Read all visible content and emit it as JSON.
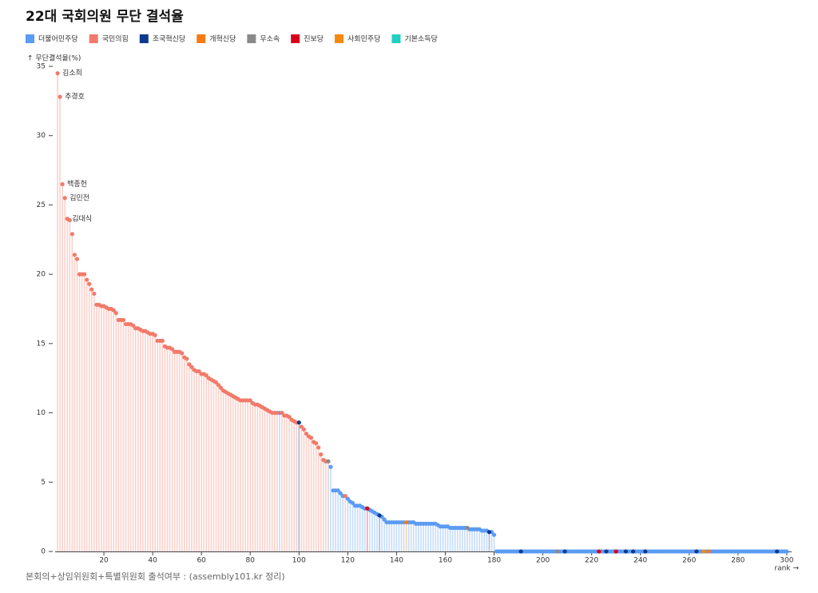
{
  "chart_data": {
    "type": "lollipop",
    "title": "22대 국회의원 무단 결석율",
    "y_label": "↑ 무단결석율(%)",
    "x_label": "rank →",
    "footnote": "본회의+상임위원회+특별위원회 출석여부 : (assembly101.kr 정리)",
    "xlim": [
      0,
      302
    ],
    "ylim": [
      0,
      35
    ],
    "xticks": [
      20,
      40,
      60,
      80,
      100,
      120,
      140,
      160,
      180,
      200,
      220,
      240,
      260,
      280,
      300
    ],
    "yticks": [
      0,
      5,
      10,
      15,
      20,
      25,
      30,
      35
    ],
    "annotations": [
      {
        "text": "김소희",
        "x": 1,
        "y": 34.5
      },
      {
        "text": "추경호",
        "x": 2,
        "y": 32.8
      },
      {
        "text": "백종헌",
        "x": 3,
        "y": 26.5
      },
      {
        "text": "김민전",
        "x": 4,
        "y": 25.5
      },
      {
        "text": "김대식",
        "x": 5,
        "y": 24.0
      }
    ],
    "series": [
      {
        "name": "더불어민주당",
        "color": "#5a9bf3",
        "x": [
          92,
          113,
          114,
          115,
          116,
          117,
          118,
          120,
          121,
          122,
          123,
          124,
          125,
          126,
          127,
          129,
          130,
          131,
          132,
          134,
          135,
          136,
          137,
          138,
          139,
          140,
          141,
          142,
          143,
          145,
          146,
          147,
          148,
          149,
          150,
          151,
          152,
          153,
          154,
          155,
          156,
          157,
          158,
          159,
          160,
          161,
          162,
          163,
          164,
          165,
          166,
          167,
          168,
          170,
          171,
          172,
          173,
          174,
          175,
          176,
          177,
          179,
          180,
          181,
          182,
          183,
          184,
          185,
          186,
          187,
          188,
          189,
          190,
          192,
          193,
          194,
          195,
          196,
          197,
          198,
          199,
          200,
          201,
          202,
          203,
          204,
          205,
          207,
          208,
          210,
          211,
          212,
          213,
          214,
          215,
          216,
          217,
          218,
          219,
          220,
          221,
          222,
          224,
          225,
          227,
          228,
          229,
          231,
          232,
          233,
          235,
          236,
          238,
          239,
          240,
          241,
          243,
          244,
          245,
          246,
          247,
          248,
          249,
          250,
          251,
          252,
          253,
          254,
          255,
          256,
          257,
          258,
          259,
          260,
          261,
          262,
          264,
          265,
          267,
          269,
          270,
          271,
          272,
          273,
          274,
          275,
          276,
          277,
          278,
          279,
          280,
          281,
          282,
          283,
          284,
          285,
          286,
          287,
          288,
          289,
          290,
          291,
          292,
          293,
          294,
          295,
          297,
          298,
          299,
          300
        ],
        "values": [
          10.0,
          6.1,
          4.4,
          4.4,
          4.4,
          4.2,
          4.0,
          3.8,
          3.6,
          3.5,
          3.3,
          3.3,
          3.3,
          3.2,
          3.1,
          3.0,
          2.9,
          2.8,
          2.7,
          2.5,
          2.3,
          2.1,
          2.1,
          2.1,
          2.1,
          2.1,
          2.1,
          2.1,
          2.1,
          2.1,
          2.1,
          2.1,
          2.0,
          2.0,
          2.0,
          2.0,
          2.0,
          2.0,
          2.0,
          2.0,
          2.0,
          1.9,
          1.8,
          1.8,
          1.8,
          1.8,
          1.7,
          1.7,
          1.7,
          1.7,
          1.7,
          1.7,
          1.7,
          1.6,
          1.6,
          1.6,
          1.6,
          1.6,
          1.5,
          1.5,
          1.5,
          1.4,
          1.2,
          0,
          0,
          0,
          0,
          0,
          0,
          0,
          0,
          0,
          0,
          0,
          0,
          0,
          0,
          0,
          0,
          0,
          0,
          0,
          0,
          0,
          0,
          0,
          0,
          0,
          0,
          0,
          0,
          0,
          0,
          0,
          0,
          0,
          0,
          0,
          0,
          0,
          0,
          0,
          0,
          0,
          0,
          0,
          0,
          0,
          0,
          0,
          0,
          0,
          0,
          0,
          0,
          0,
          0,
          0,
          0,
          0,
          0,
          0,
          0,
          0,
          0,
          0,
          0,
          0,
          0,
          0,
          0,
          0,
          0,
          0,
          0,
          0,
          0,
          0,
          0,
          0,
          0,
          0,
          0,
          0,
          0,
          0,
          0,
          0,
          0,
          0,
          0,
          0,
          0,
          0,
          0,
          0,
          0,
          0,
          0,
          0,
          0,
          0,
          0,
          0,
          0,
          0,
          0,
          0,
          0,
          0
        ]
      },
      {
        "name": "국민의힘",
        "color": "#f27a6a",
        "x": [
          1,
          2,
          3,
          4,
          5,
          6,
          7,
          8,
          9,
          10,
          11,
          12,
          13,
          14,
          15,
          16,
          17,
          18,
          19,
          20,
          21,
          22,
          23,
          24,
          25,
          26,
          27,
          28,
          29,
          30,
          31,
          32,
          33,
          34,
          35,
          36,
          37,
          38,
          39,
          40,
          41,
          42,
          43,
          44,
          45,
          46,
          47,
          48,
          49,
          50,
          51,
          52,
          53,
          54,
          55,
          56,
          57,
          58,
          59,
          60,
          61,
          62,
          63,
          64,
          65,
          66,
          67,
          68,
          69,
          70,
          71,
          72,
          73,
          74,
          75,
          76,
          77,
          78,
          79,
          80,
          81,
          82,
          83,
          84,
          85,
          86,
          87,
          88,
          89,
          90,
          91,
          93,
          94,
          95,
          96,
          97,
          98,
          99,
          101,
          102,
          103,
          104,
          105,
          106,
          107,
          108,
          109,
          110,
          111,
          119
        ],
        "values": [
          34.5,
          32.8,
          26.5,
          25.5,
          24.0,
          23.9,
          22.9,
          21.4,
          21.1,
          20.0,
          20.0,
          20.0,
          19.6,
          19.3,
          18.9,
          18.6,
          17.8,
          17.8,
          17.7,
          17.7,
          17.6,
          17.5,
          17.5,
          17.4,
          17.2,
          16.7,
          16.7,
          16.7,
          16.4,
          16.4,
          16.4,
          16.3,
          16.1,
          16.1,
          16.0,
          15.9,
          15.9,
          15.8,
          15.7,
          15.7,
          15.6,
          15.2,
          15.2,
          15.2,
          14.8,
          14.7,
          14.7,
          14.6,
          14.4,
          14.4,
          14.4,
          14.3,
          14.0,
          13.9,
          13.5,
          13.3,
          13.1,
          13.0,
          13.0,
          12.8,
          12.8,
          12.7,
          12.5,
          12.4,
          12.3,
          12.2,
          12.0,
          11.8,
          11.6,
          11.5,
          11.4,
          11.3,
          11.2,
          11.1,
          11.0,
          10.9,
          10.9,
          10.9,
          10.9,
          10.9,
          10.7,
          10.6,
          10.6,
          10.5,
          10.4,
          10.3,
          10.2,
          10.1,
          10.0,
          10.0,
          10.0,
          10.0,
          9.8,
          9.8,
          9.7,
          9.5,
          9.4,
          9.3,
          9.0,
          8.8,
          8.5,
          8.3,
          8.2,
          7.9,
          7.8,
          7.5,
          7.0,
          6.6,
          6.5,
          4.0
        ]
      },
      {
        "name": "조국혁신당",
        "color": "#0b3a8c",
        "x": [
          100,
          133,
          178,
          191,
          209,
          226,
          234,
          237,
          242,
          263,
          296
        ],
        "values": [
          9.3,
          2.6,
          1.4,
          0,
          0,
          0,
          0,
          0,
          0,
          0,
          0
        ]
      },
      {
        "name": "개혁신당",
        "color": "#f77b12",
        "x": [
          144,
          268
        ],
        "values": [
          2.1,
          0
        ]
      },
      {
        "name": "무소속",
        "color": "#8a8a8a",
        "x": [
          112,
          169,
          206
        ],
        "values": [
          6.5,
          1.7,
          0
        ]
      },
      {
        "name": "진보당",
        "color": "#d7001d",
        "x": [
          128,
          223,
          230
        ],
        "values": [
          3.1,
          0,
          0
        ]
      },
      {
        "name": "사회민주당",
        "color": "#f5890a",
        "x": [
          266
        ],
        "values": [
          0
        ]
      },
      {
        "name": "기본소득당",
        "color": "#1fd0c2",
        "x": [],
        "values": []
      }
    ]
  }
}
